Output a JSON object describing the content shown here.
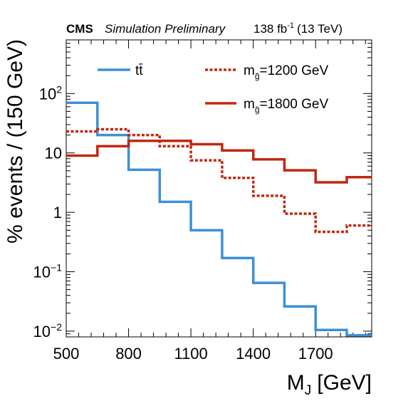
{
  "header": {
    "experiment": "CMS",
    "status": "Simulation Preliminary",
    "lumi_value": "138 fb",
    "lumi_exp": "-1",
    "energy": "(13 TeV)"
  },
  "chart_data": {
    "type": "line",
    "style": "step-histogram",
    "xlabel": "M",
    "xlabel_sub": "J",
    "xlabel_unit": "[GeV]",
    "ylabel": "% events / (150 GeV)",
    "xlim": [
      500,
      1970
    ],
    "ylim": [
      0.008,
      800
    ],
    "yscale": "log",
    "x_ticks": [
      500,
      800,
      1100,
      1400,
      1700
    ],
    "y_ticks": [
      {
        "value": 0.01,
        "base": "10",
        "exp": "−2"
      },
      {
        "value": 0.1,
        "base": "10",
        "exp": "−1"
      },
      {
        "value": 1,
        "base": "1",
        "exp": ""
      },
      {
        "value": 10,
        "base": "10",
        "exp": ""
      },
      {
        "value": 100,
        "base": "10",
        "exp": "2"
      }
    ],
    "bin_edges": [
      500,
      650,
      800,
      950,
      1100,
      1250,
      1400,
      1550,
      1700,
      1850,
      1970
    ],
    "series": [
      {
        "name": "tt̄",
        "color": "#3d8fd6",
        "dash": "solid",
        "values": [
          70,
          20,
          5.2,
          1.5,
          0.5,
          0.17,
          0.065,
          0.026,
          0.0105,
          0.0085
        ]
      },
      {
        "name_main": "m",
        "name_sub": "g̃",
        "name_rest": "=1200 GeV",
        "color": "#c0280f",
        "dash": "dotted",
        "values": [
          23,
          25,
          20,
          13,
          7.5,
          3.8,
          1.9,
          0.95,
          0.47,
          0.6
        ]
      },
      {
        "name_main": "m",
        "name_sub": "g̃",
        "name_rest": "=1800 GeV",
        "color": "#c0280f",
        "dash": "solid",
        "values": [
          9,
          13,
          16,
          16,
          14,
          11,
          7.8,
          5.1,
          3.2,
          3.9
        ]
      }
    ],
    "legend_placement": "top",
    "grid": false
  }
}
